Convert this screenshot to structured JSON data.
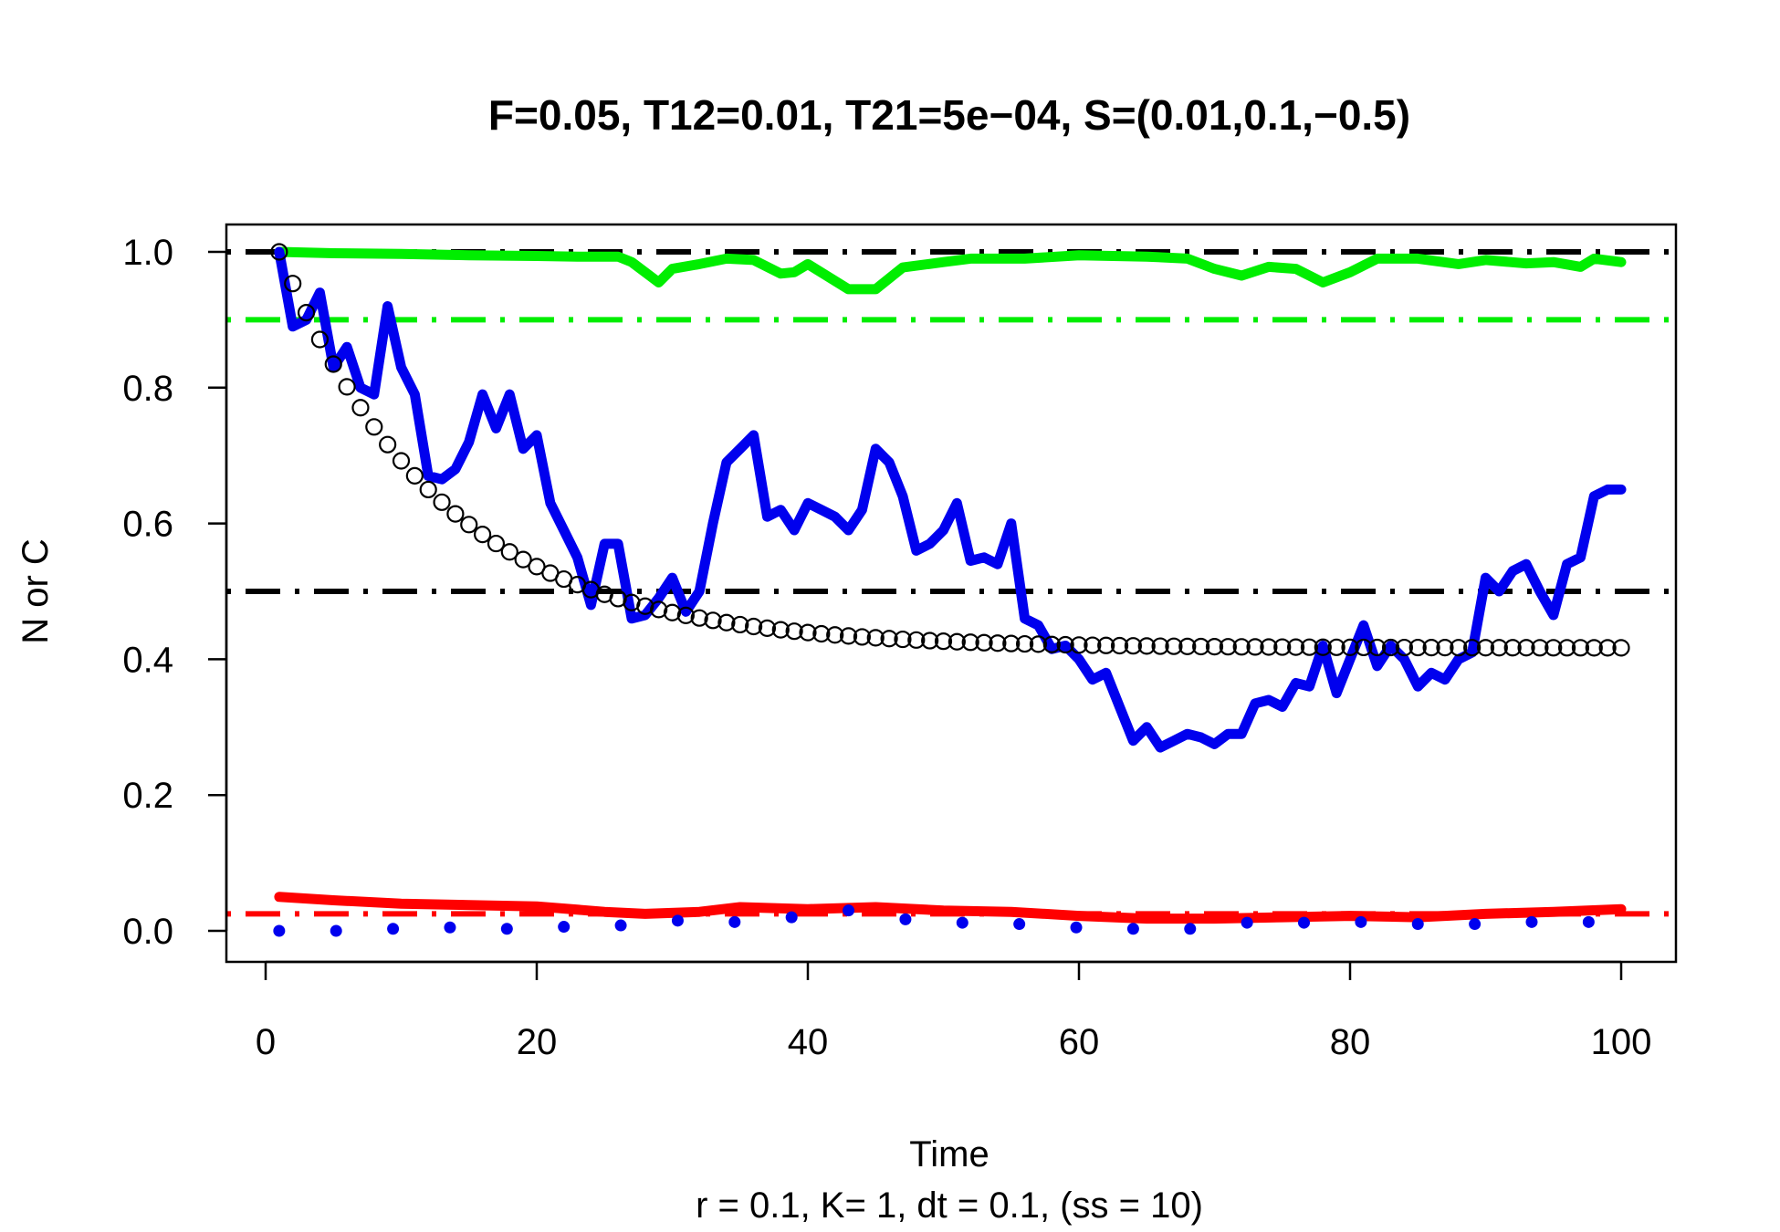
{
  "chart_data": {
    "type": "line",
    "title": "F=0.05, T12=0.01, T21=5e−04, S=(0.01,0.1,−0.5)",
    "xlabel": "Time",
    "ylabel": "N or C",
    "subtitle": "r = 0.1, K= 1, dt = 0.1, (ss = 10)",
    "xlim": [
      -3,
      104
    ],
    "ylim": [
      -0.04,
      1.04
    ],
    "x_ticks": [
      0,
      20,
      40,
      60,
      80,
      100
    ],
    "x_tick_labels": [
      "0",
      "20",
      "40",
      "60",
      "80",
      "100"
    ],
    "y_ticks": [
      0.0,
      0.2,
      0.4,
      0.6,
      0.8,
      1.0
    ],
    "y_tick_labels": [
      "0.0",
      "0.2",
      "0.4",
      "0.6",
      "0.8",
      "1.0"
    ],
    "grid": false,
    "reference_lines": [
      {
        "y": 1.0,
        "color": "#000000",
        "style": "dotdash"
      },
      {
        "y": 0.9,
        "color": "#00ee00",
        "style": "dotdash"
      },
      {
        "y": 0.5,
        "color": "#000000",
        "style": "dotdash"
      },
      {
        "y": 0.025,
        "color": "#ff0000",
        "style": "dotdash"
      }
    ],
    "series": [
      {
        "style": "line",
        "color": "#00ee00",
        "x": [
          1,
          5,
          10,
          15,
          20,
          23,
          26,
          27,
          29,
          30,
          32,
          34,
          36,
          38,
          39,
          40,
          43,
          45,
          47,
          50,
          52,
          56,
          60,
          65,
          68,
          70,
          72,
          74,
          76,
          78,
          80,
          82,
          85,
          88,
          90,
          93,
          95,
          97,
          98,
          100
        ],
        "values": [
          1.0,
          0.998,
          0.997,
          0.995,
          0.994,
          0.993,
          0.993,
          0.985,
          0.955,
          0.975,
          0.982,
          0.99,
          0.988,
          0.968,
          0.97,
          0.982,
          0.945,
          0.945,
          0.977,
          0.985,
          0.99,
          0.99,
          0.995,
          0.993,
          0.99,
          0.975,
          0.965,
          0.978,
          0.975,
          0.955,
          0.97,
          0.99,
          0.99,
          0.982,
          0.988,
          0.983,
          0.985,
          0.978,
          0.99,
          0.985
        ]
      },
      {
        "style": "line",
        "color": "#0000ee",
        "x": [
          1,
          2,
          3,
          4,
          5,
          6,
          7,
          8,
          9,
          10,
          11,
          12,
          13,
          14,
          15,
          16,
          17,
          18,
          19,
          20,
          21,
          22,
          23,
          24,
          25,
          26,
          27,
          28,
          29,
          30,
          31,
          32,
          33,
          34,
          35,
          36,
          37,
          38,
          39,
          40,
          41,
          42,
          43,
          44,
          45,
          46,
          47,
          48,
          49,
          50,
          51,
          52,
          53,
          54,
          55,
          56,
          57,
          58,
          59,
          60,
          61,
          62,
          63,
          64,
          65,
          66,
          67,
          68,
          69,
          70,
          71,
          72,
          73,
          74,
          75,
          76,
          77,
          78,
          79,
          80,
          81,
          82,
          83,
          84,
          85,
          86,
          87,
          88,
          89,
          90,
          91,
          92,
          93,
          94,
          95,
          96,
          97,
          98,
          99,
          100
        ],
        "values": [
          1.0,
          0.89,
          0.9,
          0.94,
          0.83,
          0.86,
          0.8,
          0.79,
          0.92,
          0.83,
          0.79,
          0.67,
          0.665,
          0.68,
          0.72,
          0.79,
          0.74,
          0.79,
          0.71,
          0.73,
          0.63,
          0.59,
          0.55,
          0.48,
          0.57,
          0.57,
          0.46,
          0.465,
          0.49,
          0.52,
          0.47,
          0.5,
          0.6,
          0.69,
          0.71,
          0.73,
          0.61,
          0.62,
          0.59,
          0.63,
          0.62,
          0.61,
          0.59,
          0.62,
          0.71,
          0.69,
          0.64,
          0.56,
          0.57,
          0.59,
          0.63,
          0.545,
          0.55,
          0.54,
          0.6,
          0.46,
          0.45,
          0.415,
          0.42,
          0.4,
          0.37,
          0.38,
          0.33,
          0.28,
          0.3,
          0.27,
          0.28,
          0.29,
          0.285,
          0.275,
          0.29,
          0.29,
          0.335,
          0.34,
          0.33,
          0.365,
          0.36,
          0.42,
          0.35,
          0.4,
          0.45,
          0.39,
          0.42,
          0.4,
          0.36,
          0.38,
          0.37,
          0.4,
          0.41,
          0.52,
          0.5,
          0.53,
          0.54,
          0.5,
          0.465,
          0.54,
          0.55,
          0.64,
          0.65,
          0.65
        ]
      },
      {
        "style": "line",
        "color": "#ff0000",
        "x": [
          1,
          5,
          10,
          15,
          20,
          25,
          28,
          32,
          35,
          40,
          45,
          50,
          55,
          60,
          65,
          70,
          75,
          80,
          85,
          90,
          95,
          100
        ],
        "values": [
          0.05,
          0.045,
          0.04,
          0.038,
          0.036,
          0.028,
          0.025,
          0.028,
          0.035,
          0.032,
          0.035,
          0.03,
          0.028,
          0.022,
          0.018,
          0.018,
          0.02,
          0.022,
          0.02,
          0.025,
          0.028,
          0.032
        ]
      },
      {
        "style": "circles",
        "color": "#000000",
        "formula": "0.4167 + 0.5833*exp(-(t-1)/12)",
        "x_from": 1,
        "x_to": 100,
        "step": 1
      },
      {
        "style": "points",
        "color": "#0000ee",
        "x": [
          1,
          5.2,
          9.4,
          13.6,
          17.8,
          22.0,
          26.2,
          30.4,
          34.6,
          38.8,
          43.0,
          47.2,
          51.4,
          55.6,
          59.8,
          64.0,
          68.2,
          72.4,
          76.6,
          80.8,
          85.0,
          89.2,
          93.4,
          97.6
        ],
        "values": [
          0.0,
          0.0,
          0.003,
          0.005,
          0.003,
          0.006,
          0.008,
          0.015,
          0.013,
          0.02,
          0.03,
          0.017,
          0.012,
          0.01,
          0.005,
          0.003,
          0.003,
          0.012,
          0.012,
          0.013,
          0.01,
          0.01,
          0.013,
          0.013
        ]
      }
    ]
  }
}
